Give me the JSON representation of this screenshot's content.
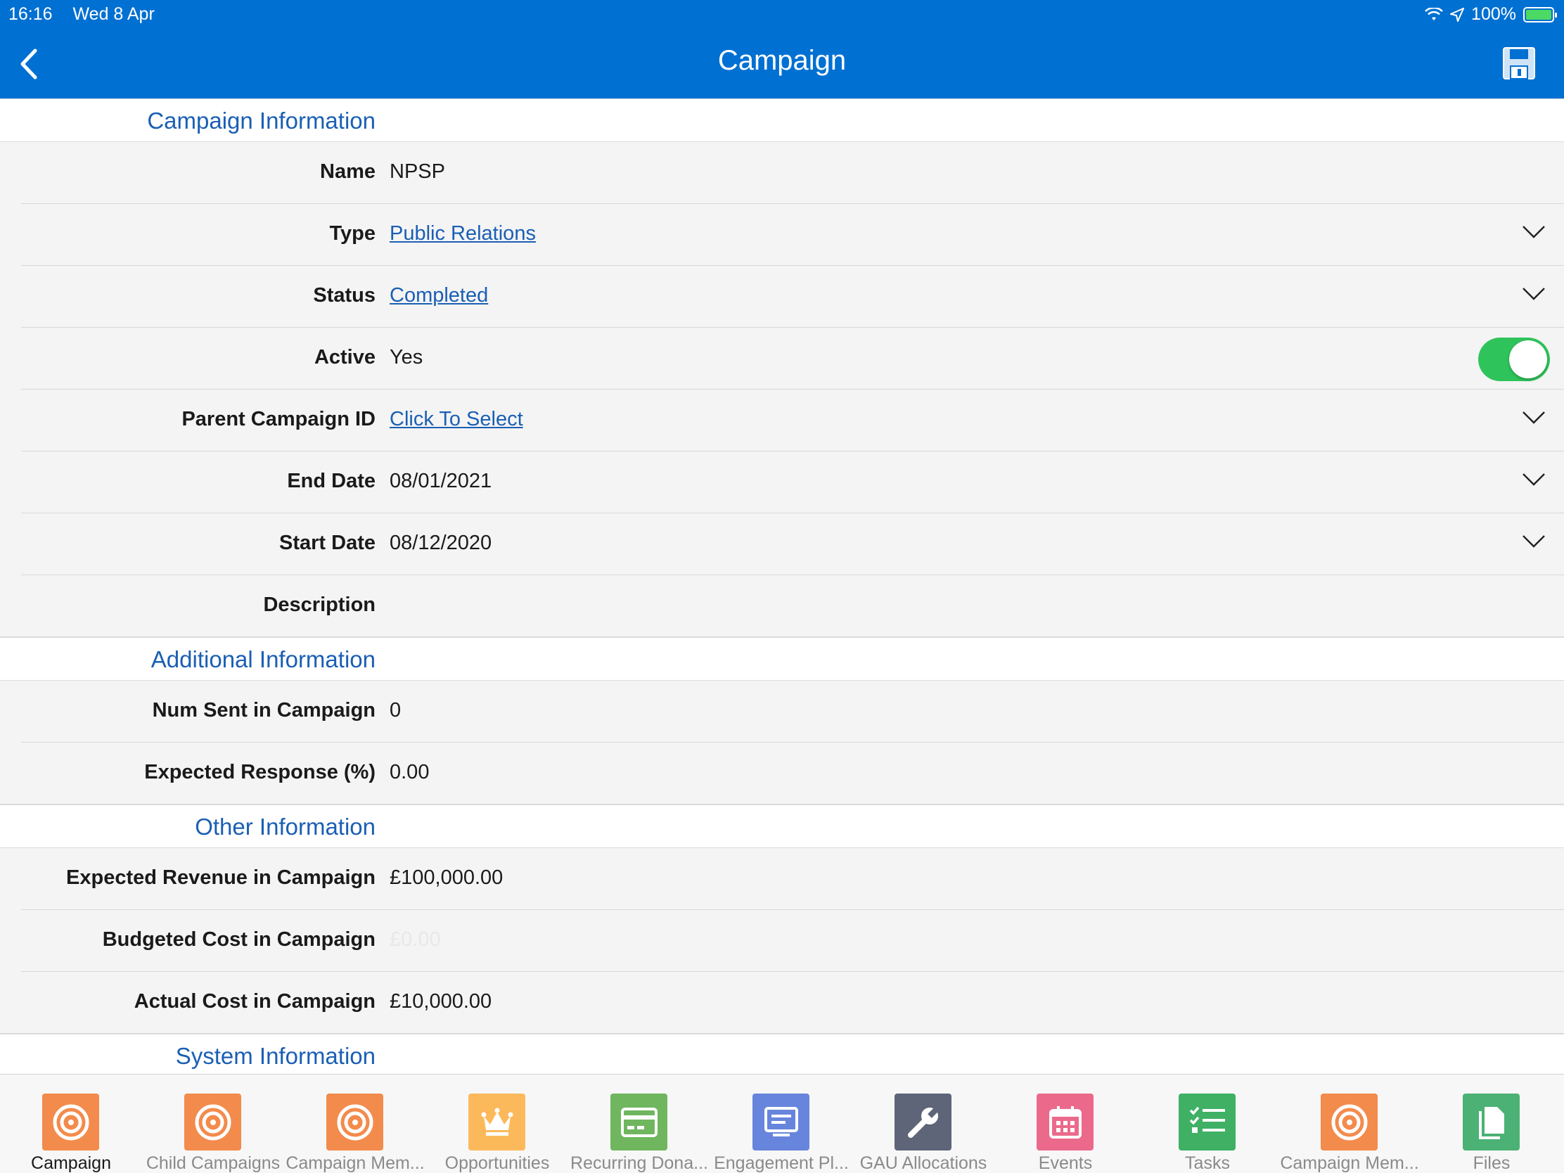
{
  "status_bar": {
    "time": "16:16",
    "date": "Wed 8 Apr",
    "battery": "100%",
    "wifi_icon": "wifi-icon",
    "location_icon": "location-icon"
  },
  "header": {
    "title": "Campaign",
    "back_icon": "chevron-left-icon",
    "save_icon": "save-icon"
  },
  "sections": {
    "campaign_info": {
      "title": "Campaign Information",
      "name": {
        "label": "Name",
        "value": "NPSP"
      },
      "type": {
        "label": "Type",
        "value": "Public Relations"
      },
      "status": {
        "label": "Status",
        "value": "Completed"
      },
      "active": {
        "label": "Active",
        "value": "Yes",
        "toggle_on": true
      },
      "parent": {
        "label": "Parent Campaign ID",
        "value": "Click To Select"
      },
      "end_date": {
        "label": "End Date",
        "value": "08/01/2021"
      },
      "start_date": {
        "label": "Start Date",
        "value": "08/12/2020"
      },
      "description": {
        "label": "Description",
        "value": ""
      }
    },
    "additional_info": {
      "title": "Additional Information",
      "num_sent": {
        "label": "Num Sent in Campaign",
        "value": "0"
      },
      "expected_response": {
        "label": "Expected Response (%)",
        "value": "0.00"
      }
    },
    "other_info": {
      "title": "Other Information",
      "expected_revenue": {
        "label": "Expected Revenue in Campaign",
        "value": "£100,000.00"
      },
      "budgeted_cost": {
        "label": "Budgeted Cost in Campaign",
        "value": "£0.00"
      },
      "actual_cost": {
        "label": "Actual Cost in Campaign",
        "value": "£10,000.00"
      }
    },
    "system_info": {
      "title": "System Information"
    }
  },
  "tabs": [
    {
      "label": "Campaign",
      "icon": "target-icon",
      "color": "#f38b4c"
    },
    {
      "label": "Child Campaigns",
      "icon": "target-icon",
      "color": "#f38b4c"
    },
    {
      "label": "Campaign Mem...",
      "icon": "target-icon",
      "color": "#f38b4c"
    },
    {
      "label": "Opportunities",
      "icon": "crown-icon",
      "color": "#fcb95b"
    },
    {
      "label": "Recurring Dona...",
      "icon": "card-icon",
      "color": "#6fb65e"
    },
    {
      "label": "Engagement Pl...",
      "icon": "plan-icon",
      "color": "#6785dc"
    },
    {
      "label": "GAU Allocations",
      "icon": "wrench-icon",
      "color": "#5e6579"
    },
    {
      "label": "Events",
      "icon": "calendar-icon",
      "color": "#eb6a8c"
    },
    {
      "label": "Tasks",
      "icon": "task-list-icon",
      "color": "#3fb064"
    },
    {
      "label": "Campaign Mem...",
      "icon": "target-icon",
      "color": "#f38b4c"
    },
    {
      "label": "Files",
      "icon": "files-icon",
      "color": "#4bb174"
    }
  ]
}
